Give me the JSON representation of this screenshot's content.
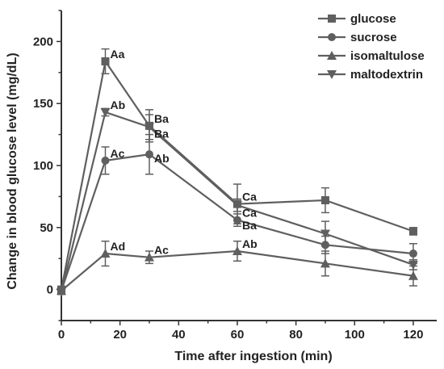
{
  "chart_data": {
    "type": "line",
    "title": "",
    "xlabel": "Time after ingestion (min)",
    "ylabel": "Change in blood glucose level (mg/dL)",
    "xlim": [
      0,
      128
    ],
    "ylim": [
      -25,
      225
    ],
    "xticks": [
      0,
      20,
      40,
      60,
      80,
      100,
      120
    ],
    "yticks": [
      0,
      50,
      100,
      150,
      200
    ],
    "x": [
      0,
      15,
      30,
      60,
      90,
      120
    ],
    "legend_position": "top-right",
    "grid": false,
    "series_color": "#5f5f5f",
    "series": [
      {
        "name": "glucose",
        "marker": "square",
        "values": [
          0,
          184,
          132,
          69,
          72,
          47
        ],
        "errors": [
          2,
          10,
          13,
          16,
          10,
          3
        ]
      },
      {
        "name": "sucrose",
        "marker": "circle",
        "values": [
          -1,
          104,
          109,
          56,
          36,
          29
        ],
        "errors": [
          2,
          11,
          16,
          5,
          7,
          8
        ]
      },
      {
        "name": "isomaltulose",
        "marker": "triangle-up",
        "values": [
          -1,
          29,
          26,
          31,
          21,
          11
        ],
        "errors": [
          2,
          10,
          5,
          8,
          10,
          8
        ]
      },
      {
        "name": "maltodextrin",
        "marker": "triangle-down",
        "values": [
          -2,
          143,
          131,
          68,
          45,
          20
        ],
        "errors": [
          2,
          3,
          10,
          5,
          10,
          4
        ]
      }
    ],
    "annotations": [
      {
        "text": "Aa",
        "x": 15,
        "y": 184
      },
      {
        "text": "Ab",
        "x": 15,
        "y": 143
      },
      {
        "text": "Ac",
        "x": 15,
        "y": 104
      },
      {
        "text": "Ad",
        "x": 15,
        "y": 29
      },
      {
        "text": "Ba",
        "x": 30,
        "y": 132
      },
      {
        "text": "Ba",
        "x": 30,
        "y": 120
      },
      {
        "text": "Ab",
        "x": 30,
        "y": 100
      },
      {
        "text": "Ac",
        "x": 30,
        "y": 26
      },
      {
        "text": "Ca",
        "x": 60,
        "y": 69
      },
      {
        "text": "Ca",
        "x": 60,
        "y": 56
      },
      {
        "text": "Ba",
        "x": 60,
        "y": 46
      },
      {
        "text": "Ab",
        "x": 60,
        "y": 31
      }
    ]
  }
}
